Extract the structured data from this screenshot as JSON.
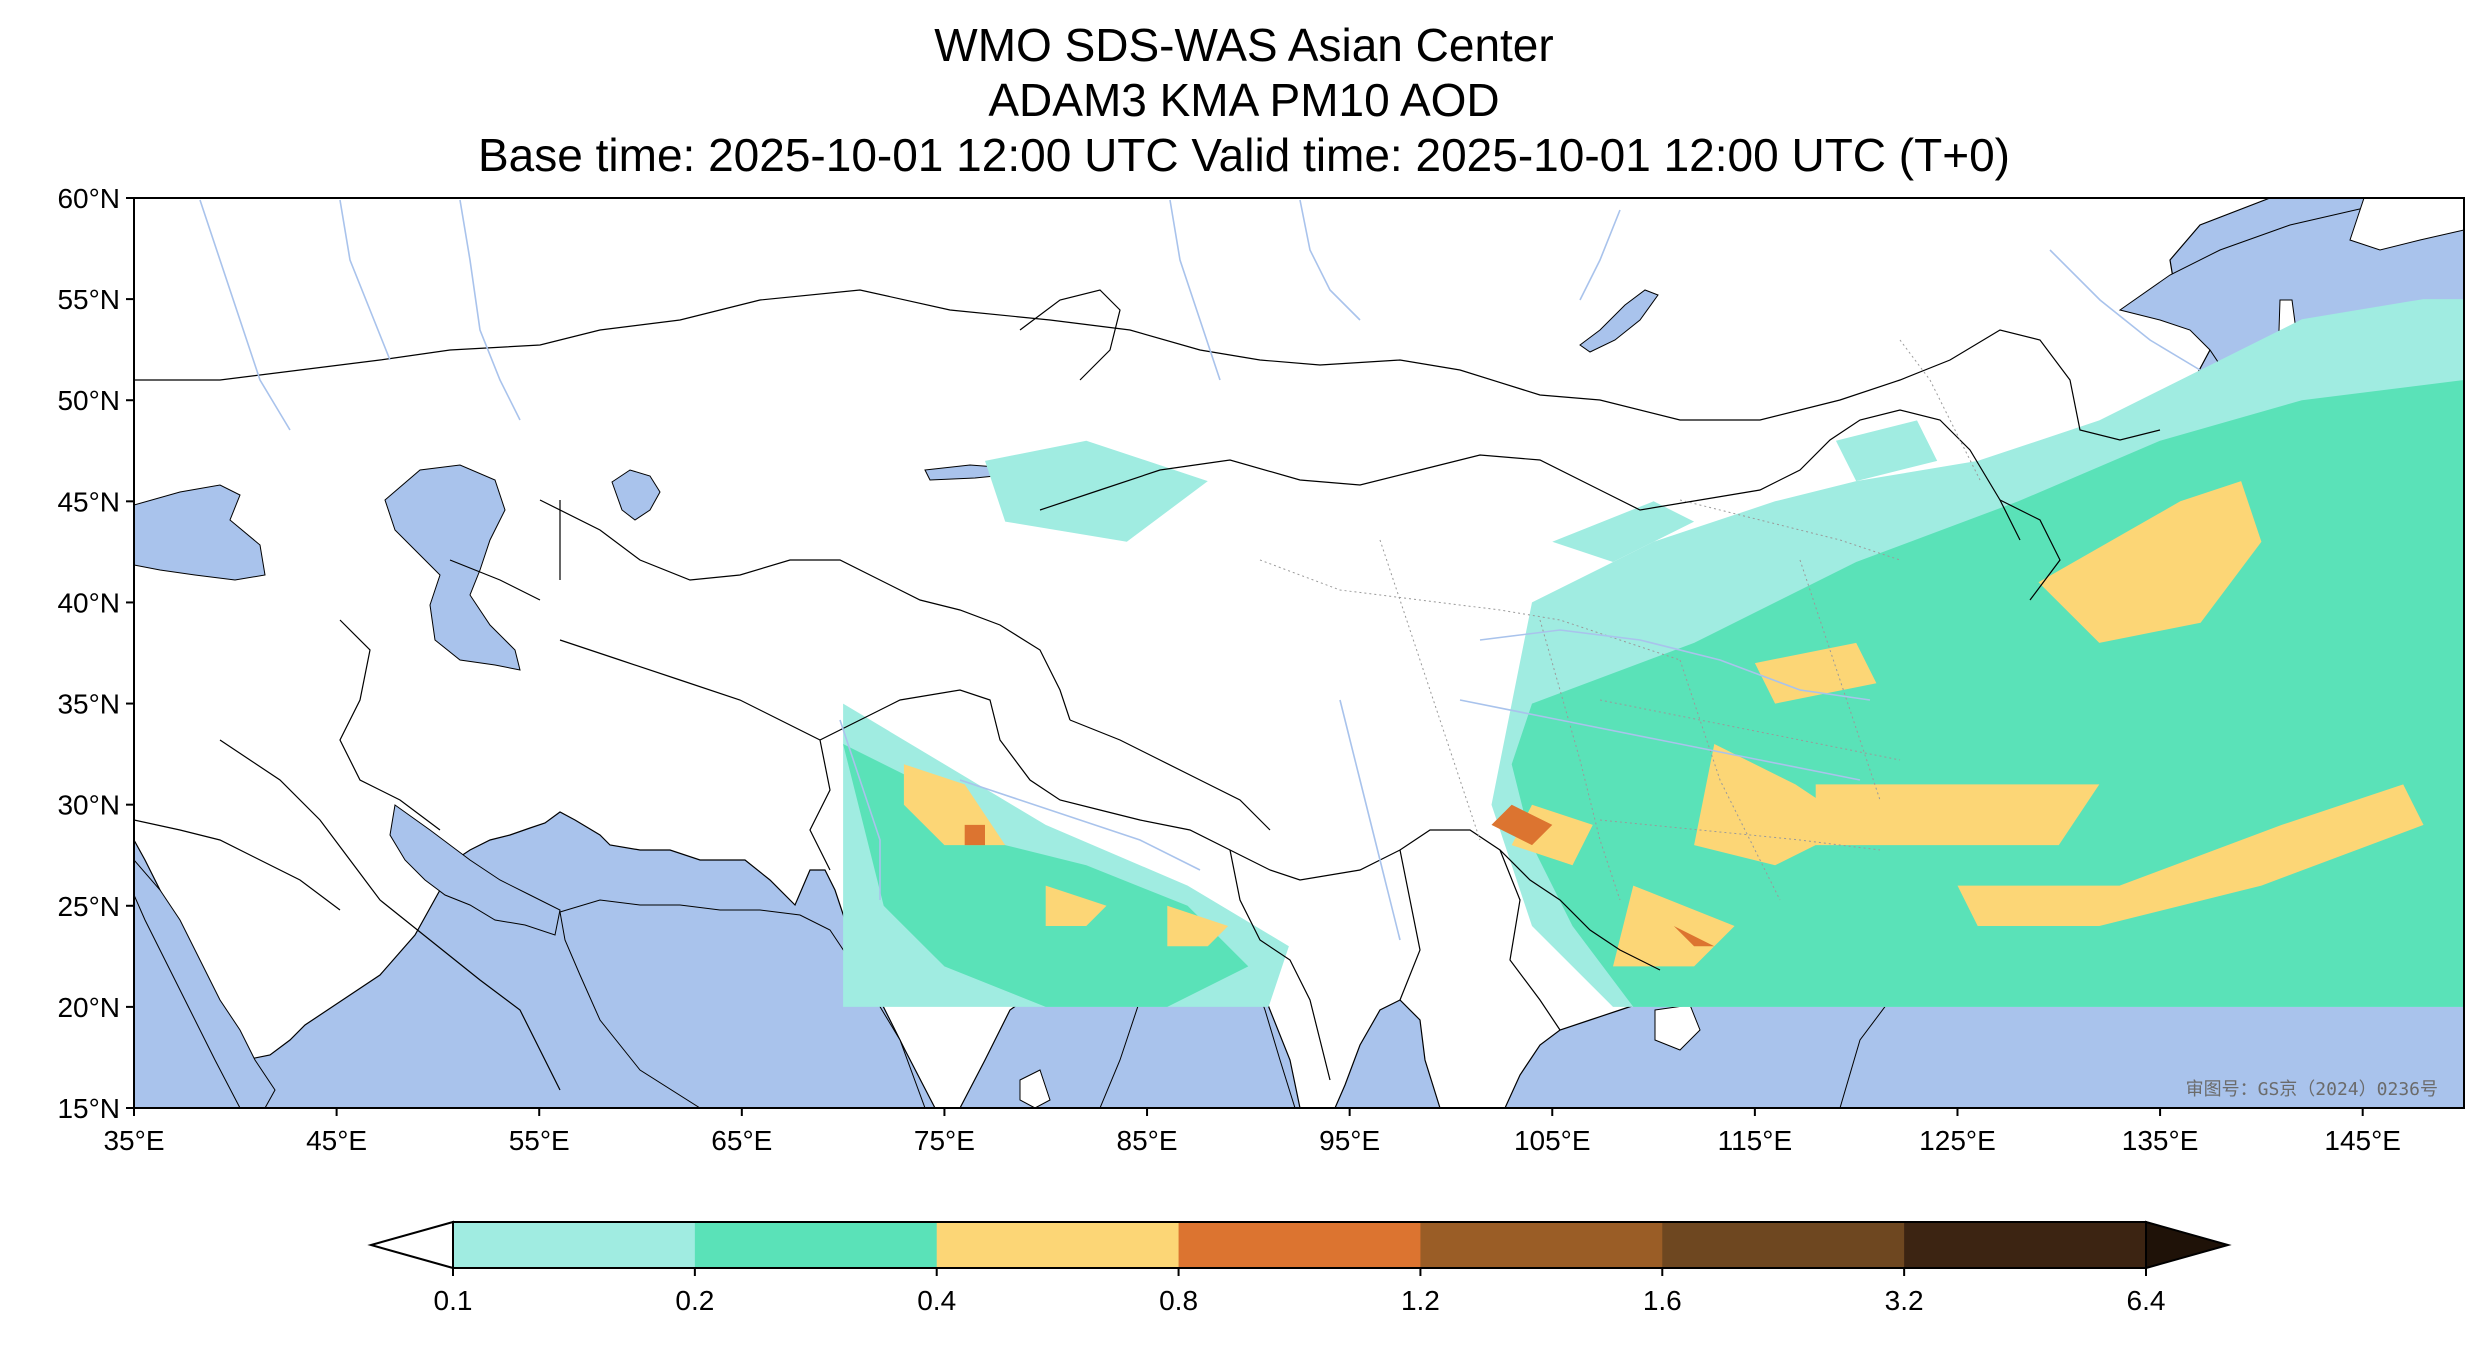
{
  "title": {
    "line1": "WMO SDS-WAS Asian Center",
    "line2": "ADAM3 KMA PM10 AOD",
    "line3": "Base time: 2025-10-01 12:00 UTC Valid time: 2025-10-01 12:00 UTC (T+0)"
  },
  "map": {
    "lon_range": [
      35,
      150
    ],
    "lat_range": [
      15,
      60
    ],
    "ocean_color": "#a9c3ec",
    "land_color": "#ffffff",
    "x_ticks": [
      "35°E",
      "45°E",
      "55°E",
      "65°E",
      "75°E",
      "85°E",
      "95°E",
      "105°E",
      "115°E",
      "125°E",
      "135°E",
      "145°E"
    ],
    "y_ticks": [
      "60°N",
      "55°N",
      "50°N",
      "45°N",
      "40°N",
      "35°N",
      "30°N",
      "25°N",
      "20°N",
      "15°N"
    ],
    "watermark": "审图号：GS京（2024）0236号"
  },
  "colorbar": {
    "levels": [
      "0.1",
      "0.2",
      "0.4",
      "0.8",
      "1.2",
      "1.6",
      "3.2",
      "6.4"
    ],
    "colors": [
      "#a0ece1",
      "#5ae2b8",
      "#fcd676",
      "#dc7430",
      "#9a5d26",
      "#6e4720",
      "#3c2412"
    ],
    "under_color": "#ffffff",
    "over_color": "#1f1208"
  }
}
